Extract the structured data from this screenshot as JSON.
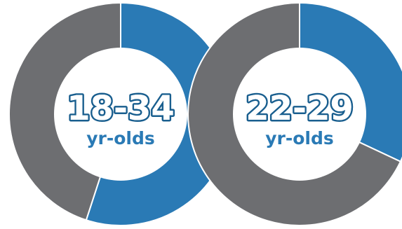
{
  "chart_data": [
    {
      "type": "pie",
      "title": "",
      "center_label": "18-34",
      "center_sublabel": "yr-olds",
      "slices": [
        {
          "value": 55,
          "color": "#2a7ab5"
        },
        {
          "value": 45,
          "color": "#6d6e71"
        }
      ]
    },
    {
      "type": "pie",
      "title": "",
      "center_label": "22-29",
      "center_sublabel": "yr-olds",
      "slices": [
        {
          "value": 32,
          "color": "#2a7ab5"
        },
        {
          "value": 68,
          "color": "#6d6e71"
        }
      ]
    }
  ],
  "colors": {
    "accent": "#2a7ab5",
    "neutral": "#6d6e71",
    "background": "#ffffff"
  }
}
